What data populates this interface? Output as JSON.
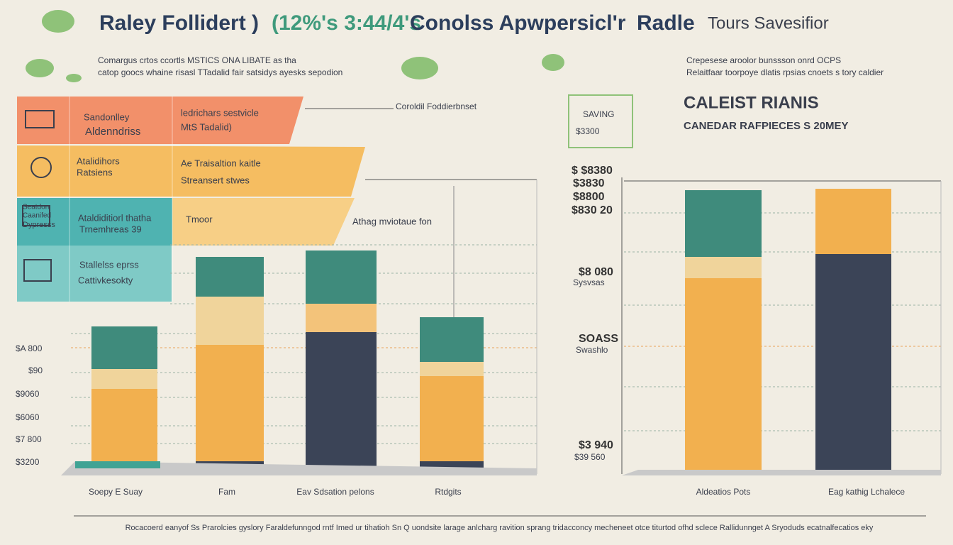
{
  "title": [
    "Raley Follidert )",
    "(12%'s 3:44/4's",
    "Conolss Apwpersicl'r",
    "Radle",
    "Tours Savesifior"
  ],
  "left_panel": {
    "subtitle": [
      "Comargus crtos ccortls MSTICS ONA  LIBATE as tha",
      "catop goocs whaine risasl TTadalid fair satsidys ayesks sepodion"
    ],
    "annotation": "Coroldil Foddierbnset",
    "legend": [
      {
        "name": [
          "Sandonlley",
          "Aldenndriss"
        ],
        "text": [
          "ledrichars sestvicle",
          "MtS Tadalid)"
        ]
      },
      {
        "name": [
          "Atalidihors",
          "Ratsiens"
        ],
        "text": [
          "Ae Traisaltion kaitle",
          "Streansert stwes"
        ]
      },
      {
        "name": [
          "Seatdon",
          "Caanifed",
          "Dypresss"
        ],
        "text": [
          "Ataldiditiorl thatha",
          "Trnemhreas 39"
        ],
        "note": "Tmoor"
      },
      {
        "name": [
          "Stallelss eprss",
          "Cattivkesokty"
        ]
      }
    ],
    "callout": "Athag mviotaue fon",
    "y_labels": [
      "$A 800",
      "$90",
      "$9060",
      "$6060",
      "$7 800",
      "$3200"
    ],
    "categories": [
      "Soepy E Suay",
      "Fam",
      "Eav Sdsation pelons",
      "Rtdgits"
    ]
  },
  "right_panel": {
    "subtitle": [
      "Crepesese aroolor bunssson onrd OCPS",
      "Relaitfaar toorpoye dlatis rpsias cnoets s tory caldier"
    ],
    "heading": "CALEIST RIANIS",
    "subheading": "CANEDAR RAFPIECES S 20MEY",
    "badge": [
      "SAVING",
      "$3300"
    ],
    "labels": [
      "$ $8380",
      "$3830",
      "$8800",
      "$830 20",
      "$8 080",
      "Sysvsas",
      "SOASS",
      "Swashlo",
      "$3 940",
      "$39 560"
    ],
    "categories": [
      "Aldeatios Pots",
      "Eag kathig Lchalece"
    ]
  },
  "footer": "Rocacoerd eanyof Ss Prarolcies gyslory Faraldefunngod rntf Imed ur tihatioh Sn Q uondsite larage anlcharg ravition sprang tridacconcy mecheneet otce titurtod ofhd sclece Rallidunnget A Sryoduds ecatnalfecatios eky"
}
